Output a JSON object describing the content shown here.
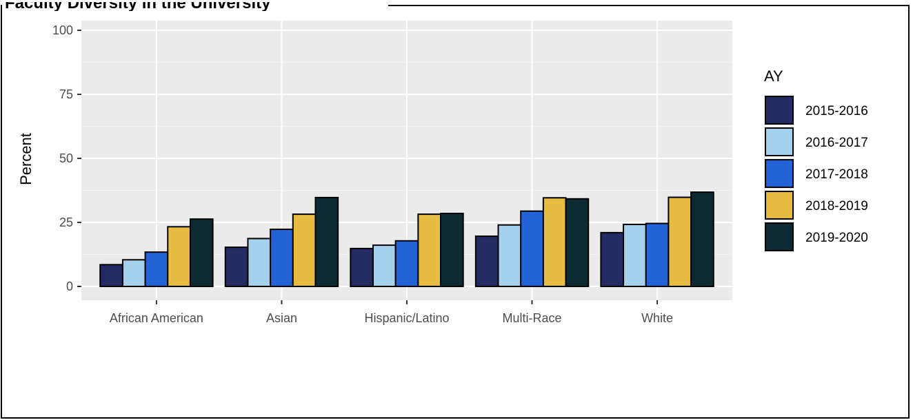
{
  "page": {
    "title_fragment": "Faculty Diversity in the University"
  },
  "chart_data": {
    "type": "bar",
    "title": "",
    "xlabel": "",
    "ylabel": "Percent",
    "ylim": [
      0,
      100
    ],
    "yticks": [
      "0",
      "25",
      "50",
      "75",
      "100"
    ],
    "categories": [
      "African American",
      "Asian",
      "Hispanic/Latino",
      "Multi-Race",
      "White"
    ],
    "legend": {
      "title": "AY",
      "placement": "right"
    },
    "grid": true,
    "series": [
      {
        "name": "2015-2016",
        "color": "#232b62",
        "values": [
          8.5,
          15.3,
          14.8,
          19.6,
          21.0
        ]
      },
      {
        "name": "2016-2017",
        "color": "#a6d1ec",
        "values": [
          10.4,
          18.7,
          16.1,
          24.0,
          24.2
        ]
      },
      {
        "name": "2017-2018",
        "color": "#2463d6",
        "values": [
          13.4,
          22.3,
          17.8,
          29.4,
          24.6
        ]
      },
      {
        "name": "2018-2019",
        "color": "#e6bc43",
        "values": [
          23.3,
          28.2,
          28.2,
          34.6,
          34.8
        ]
      },
      {
        "name": "2019-2020",
        "color": "#0b2a31",
        "values": [
          26.3,
          34.7,
          28.5,
          34.2,
          36.8
        ]
      }
    ]
  }
}
